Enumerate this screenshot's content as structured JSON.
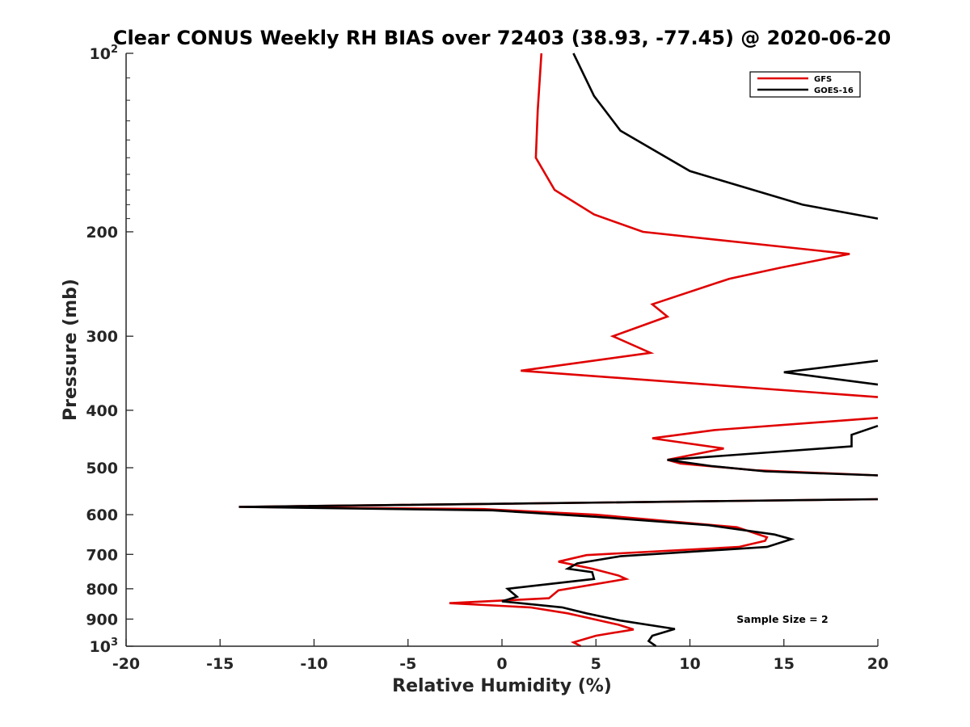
{
  "chart_data": {
    "type": "line",
    "title": "Clear CONUS Weekly RH BIAS over 72403 (38.93, -77.45) @ 2020-06-20",
    "xlabel": "Relative Humidity (%)",
    "ylabel": "Pressure (mb)",
    "xlim": [
      -20,
      20
    ],
    "ylim": [
      100,
      1000
    ],
    "y_scale": "log",
    "y_reversed": true,
    "grid": false,
    "legend_position": "top-right",
    "x_ticks": [
      "-20",
      "-15",
      "-10",
      "-5",
      "0",
      "5",
      "10",
      "15",
      "20"
    ],
    "y_ticks": [
      {
        "value": 100,
        "base": "10",
        "exp": "2"
      },
      {
        "value": 200,
        "label": "200"
      },
      {
        "value": 300,
        "label": "300"
      },
      {
        "value": 400,
        "label": "400"
      },
      {
        "value": 500,
        "label": "500"
      },
      {
        "value": 600,
        "label": "600"
      },
      {
        "value": 700,
        "label": "700"
      },
      {
        "value": 800,
        "label": "800"
      },
      {
        "value": 900,
        "label": "900"
      },
      {
        "value": 1000,
        "base": "10",
        "exp": "3"
      }
    ],
    "annotation": "Sample Size = 2",
    "series": [
      {
        "name": "GFS",
        "color": "#e00000",
        "points": [
          [
            2.1,
            100
          ],
          [
            1.9,
            125
          ],
          [
            1.8,
            150
          ],
          [
            2.8,
            170
          ],
          [
            4.9,
            187
          ],
          [
            7.5,
            200
          ],
          [
            18.5,
            218
          ],
          [
            14.8,
            230
          ],
          [
            12.1,
            240
          ],
          [
            8.0,
            265
          ],
          [
            8.8,
            278
          ],
          [
            5.9,
            300
          ],
          [
            7.9,
            320
          ],
          [
            1.0,
            343
          ],
          [
            20.0,
            380
          ]
        ],
        "segments": [
          [
            [
              20.0,
              412
            ],
            [
              11.3,
              432
            ],
            [
              8.0,
              446
            ],
            [
              11.8,
              464
            ],
            [
              8.8,
              485
            ],
            [
              9.5,
              492
            ],
            [
              13.5,
              505
            ],
            [
              20.0,
              515
            ]
          ],
          [
            [
              20.0,
              565
            ],
            [
              -14.0,
              582
            ],
            [
              -1.0,
              587
            ],
            [
              5.0,
              600
            ],
            [
              12.5,
              630
            ],
            [
              14.1,
              655
            ],
            [
              14.0,
              664
            ],
            [
              12.6,
              680
            ],
            [
              4.5,
              702
            ],
            [
              3.0,
              720
            ],
            [
              4.8,
              740
            ],
            [
              6.2,
              760
            ],
            [
              6.6,
              770
            ],
            [
              3.0,
              805
            ],
            [
              2.5,
              830
            ],
            [
              -2.8,
              846
            ],
            [
              1.5,
              860
            ],
            [
              3.5,
              880
            ],
            [
              6.2,
              920
            ],
            [
              7.0,
              937
            ],
            [
              5.0,
              960
            ],
            [
              3.8,
              985
            ],
            [
              4.2,
              1000
            ]
          ]
        ]
      },
      {
        "name": "GOES-16",
        "color": "#000000",
        "points": [
          [
            3.8,
            100
          ],
          [
            4.9,
            118
          ],
          [
            6.3,
            135
          ],
          [
            10.0,
            158
          ],
          [
            16.0,
            180
          ],
          [
            20.0,
            190
          ]
        ],
        "segments": [
          [
            [
              20.0,
              330
            ],
            [
              15.0,
              345
            ],
            [
              20.0,
              362
            ]
          ],
          [
            [
              20.0,
              425
            ],
            [
              18.6,
              440
            ],
            [
              18.6,
              460
            ],
            [
              8.8,
              485
            ],
            [
              11.2,
              497
            ],
            [
              14.0,
              507
            ],
            [
              20.0,
              515
            ]
          ],
          [
            [
              20.0,
              565
            ],
            [
              -14.0,
              582
            ],
            [
              -0.5,
              590
            ],
            [
              5.0,
              605
            ],
            [
              11.0,
              625
            ],
            [
              14.5,
              648
            ],
            [
              15.4,
              660
            ],
            [
              14.1,
              680
            ],
            [
              6.3,
              705
            ],
            [
              4.0,
              725
            ],
            [
              3.5,
              740
            ],
            [
              4.8,
              750
            ],
            [
              4.9,
              770
            ],
            [
              0.3,
              800
            ],
            [
              0.8,
              825
            ],
            [
              0.0,
              840
            ],
            [
              3.2,
              860
            ],
            [
              4.5,
              880
            ],
            [
              6.3,
              905
            ],
            [
              9.2,
              935
            ],
            [
              8.0,
              960
            ],
            [
              7.8,
              980
            ],
            [
              8.2,
              1000
            ]
          ]
        ]
      }
    ]
  }
}
